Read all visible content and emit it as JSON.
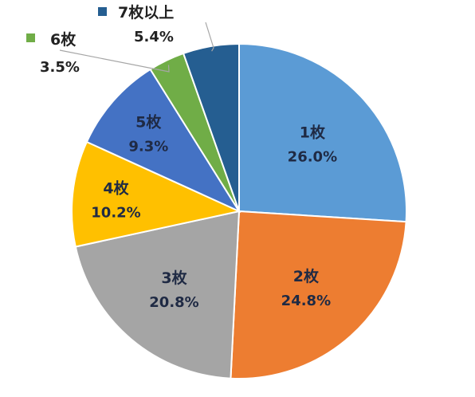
{
  "chart_data": {
    "type": "pie",
    "title": "",
    "categories": [
      "1枚",
      "2枚",
      "3枚",
      "4枚",
      "5枚",
      "6枚",
      "7枚以上"
    ],
    "values": [
      26.0,
      24.8,
      20.8,
      10.2,
      9.3,
      3.5,
      5.4
    ],
    "value_labels": [
      "26.0%",
      "24.8%",
      "20.8%",
      "10.2%",
      "9.3%",
      "3.5%",
      "5.4%"
    ],
    "colors": [
      "#5b9bd5",
      "#ed7d31",
      "#a5a5a5",
      "#ffc000",
      "#4472c4",
      "#70ad47",
      "#255e91"
    ],
    "start": "12 o'clock",
    "direction": "clockwise",
    "slice_order_clockwise": [
      "1枚",
      "2枚",
      "3枚",
      "4枚",
      "5枚",
      "6枚",
      "7枚以上"
    ],
    "outside_labels": [
      "6枚",
      "7枚以上"
    ]
  }
}
